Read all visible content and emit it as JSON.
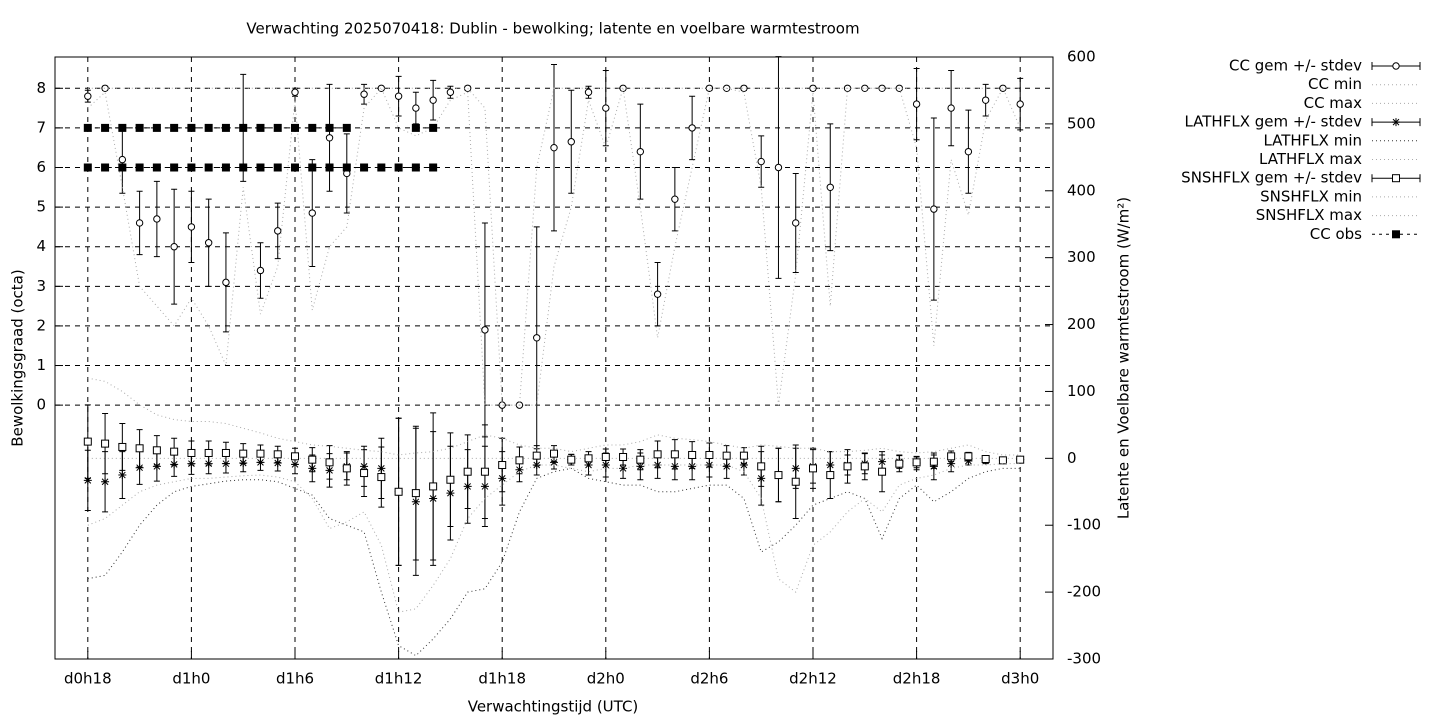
{
  "chart_data": {
    "type": "errorbar-line",
    "title": "Verwachting 2025070418: Dublin - bewolking; latente en voelbare warmtestroom",
    "xlabel": "Verwachtingstijd (UTC)",
    "ylabel": "Bewolkingsgraad (octa)",
    "y2label": "Latente en Voelbare warmtestroom (W/m²)",
    "x": [
      18,
      19,
      20,
      21,
      22,
      23,
      24,
      25,
      26,
      27,
      28,
      29,
      30,
      31,
      32,
      33,
      34,
      35,
      36,
      37,
      38,
      39,
      40,
      41,
      42,
      43,
      44,
      45,
      46,
      47,
      48,
      49,
      50,
      51,
      52,
      53,
      54,
      55,
      56,
      57,
      58,
      59,
      60,
      61,
      62,
      63,
      64,
      65,
      66,
      67,
      68,
      69,
      70,
      71,
      72
    ],
    "xlim": [
      16.1,
      73.9
    ],
    "xticks": [
      {
        "value": 18,
        "label": "d0h18"
      },
      {
        "value": 24,
        "label": "d1h0"
      },
      {
        "value": 30,
        "label": "d1h6"
      },
      {
        "value": 36,
        "label": "d1h12"
      },
      {
        "value": 42,
        "label": "d1h18"
      },
      {
        "value": 48,
        "label": "d2h0"
      },
      {
        "value": 54,
        "label": "d2h6"
      },
      {
        "value": 60,
        "label": "d2h12"
      },
      {
        "value": 66,
        "label": "d2h18"
      },
      {
        "value": 72,
        "label": "d3h0"
      }
    ],
    "ylim": [
      -6.41,
      8.79
    ],
    "yticks": [
      0,
      1,
      2,
      3,
      4,
      5,
      6,
      7,
      8
    ],
    "y2lim": [
      -300,
      600
    ],
    "y2ticks": [
      -300,
      -200,
      -100,
      0,
      100,
      200,
      300,
      400,
      500,
      600
    ],
    "grid": true,
    "legend": "right",
    "series": [
      {
        "name": "CC gem +/- stdev",
        "style": "errorbars",
        "marker": "circle",
        "color": "#000000",
        "values": [
          7.8,
          8.0,
          6.2,
          4.6,
          4.7,
          4.0,
          4.5,
          4.1,
          3.1,
          7.0,
          3.4,
          4.4,
          7.9,
          4.85,
          6.75,
          5.85,
          7.85,
          8.0,
          7.8,
          7.5,
          7.7,
          7.9,
          8.0,
          1.9,
          0,
          0,
          1.7,
          6.5,
          6.65,
          7.9,
          7.5,
          8.0,
          6.4,
          2.8,
          5.2,
          7.0,
          8.0,
          8.0,
          8.0,
          6.15,
          6.0,
          4.6,
          8.0,
          5.5,
          8.0,
          8.0,
          8.0,
          8.0,
          7.6,
          4.95,
          7.5,
          6.4,
          7.7,
          8.0,
          7.6
        ],
        "errors": [
          0.15,
          0.05,
          0.85,
          0.8,
          0.95,
          1.45,
          0.9,
          1.1,
          1.25,
          1.35,
          0.7,
          0.7,
          0.1,
          1.35,
          1.35,
          1.0,
          0.25,
          0,
          0.5,
          0.4,
          0.5,
          0.15,
          0.05,
          2.7,
          0,
          0,
          2.8,
          2.1,
          1.3,
          0.15,
          0.95,
          0,
          1.2,
          0.8,
          0.8,
          0.8,
          0.05,
          0,
          0.05,
          0.65,
          2.8,
          1.25,
          0.05,
          1.6,
          0,
          0,
          0,
          0,
          0.9,
          2.3,
          0.95,
          1.05,
          0.4,
          0,
          0.65
        ]
      },
      {
        "name": "CC min",
        "style": "dotted",
        "color": "#aaaaaa",
        "values": [
          7.5,
          7.9,
          5.5,
          3.0,
          2.5,
          2.0,
          2.7,
          2.0,
          1.0,
          5.5,
          2.3,
          3.5,
          7.7,
          2.4,
          4.0,
          4.5,
          7.5,
          8.0,
          7.0,
          6.8,
          7.0,
          7.7,
          7.9,
          0,
          0,
          0,
          0,
          3.5,
          5.0,
          7.7,
          6.5,
          8.0,
          5.0,
          1.7,
          4.0,
          6.0,
          8.0,
          8.0,
          7.9,
          5.5,
          0,
          3.3,
          7.9,
          2.5,
          8,
          8,
          8,
          8,
          6.5,
          1.5,
          6.2,
          4.8,
          7.2,
          8.0,
          7.0
        ]
      },
      {
        "name": "CC max",
        "style": "dotted",
        "color": "#aaaaaa",
        "values": [
          8,
          8,
          8,
          8,
          8,
          8,
          8,
          8,
          8,
          8,
          8,
          8,
          8,
          8,
          8,
          8,
          8,
          8,
          8,
          8,
          8,
          8,
          8,
          7.5,
          0,
          0,
          6,
          8,
          8,
          8,
          8,
          8,
          8,
          8,
          8,
          8,
          8,
          8,
          8,
          8,
          8,
          8,
          8,
          8,
          8,
          8,
          8,
          8,
          8,
          8,
          8,
          8,
          8,
          8,
          8
        ]
      },
      {
        "name": "LATHFLX gem +/- stdev",
        "style": "errorbars",
        "marker": "star",
        "color": "#000000",
        "axis": "y2",
        "values": [
          -33,
          -35,
          -25,
          -14,
          -12,
          -9,
          -8,
          -8,
          -8,
          -7,
          -6,
          -7,
          -9,
          -15,
          -18,
          -12,
          -12,
          -15,
          -50,
          -65,
          -60,
          -52,
          -42,
          -42,
          -30,
          -17,
          -10,
          -6,
          -2,
          -10,
          -10,
          -15,
          -12,
          -10,
          -12,
          -12,
          -10,
          -12,
          -10,
          -30,
          -25,
          -15,
          -12,
          -10,
          -10,
          -8,
          -5,
          -5,
          -7,
          -12,
          -8,
          -4,
          -3,
          -3,
          -2
        ],
        "errors": [
          45,
          45,
          35,
          25,
          22,
          18,
          16,
          15,
          14,
          13,
          12,
          12,
          14,
          20,
          25,
          20,
          30,
          45,
          110,
          110,
          100,
          70,
          55,
          60,
          40,
          18,
          15,
          10,
          8,
          15,
          18,
          15,
          20,
          20,
          20,
          20,
          18,
          18,
          15,
          40,
          40,
          30,
          25,
          20,
          15,
          15,
          10,
          10,
          10,
          20,
          12,
          6,
          5,
          4,
          4
        ]
      },
      {
        "name": "LATHFLX min",
        "style": "dotted",
        "color": "#333333",
        "axis": "y2",
        "values": [
          -180,
          -175,
          -140,
          -100,
          -70,
          -50,
          -42,
          -38,
          -34,
          -32,
          -32,
          -35,
          -45,
          -55,
          -90,
          -100,
          -110,
          -200,
          -280,
          -295,
          -270,
          -240,
          -200,
          -195,
          -155,
          -80,
          -30,
          -20,
          -15,
          -30,
          -35,
          -40,
          -40,
          -50,
          -50,
          -45,
          -40,
          -40,
          -60,
          -140,
          -125,
          -100,
          -70,
          -60,
          -50,
          -60,
          -120,
          -60,
          -40,
          -65,
          -50,
          -30,
          -20,
          -15,
          -15
        ]
      },
      {
        "name": "LATHFLX max",
        "style": "dotted",
        "color": "#aaaaaa",
        "axis": "y2",
        "values": [
          0,
          0,
          0,
          0,
          0,
          0,
          0,
          0,
          0,
          0,
          0,
          0,
          0,
          0,
          0,
          0,
          0,
          0,
          0,
          0,
          0,
          0,
          0,
          0,
          0,
          0,
          0,
          0,
          0,
          0,
          0,
          0,
          0,
          0,
          0,
          0,
          0,
          0,
          0,
          0,
          0,
          0,
          0,
          0,
          0,
          0,
          0,
          0,
          0,
          0,
          0,
          0,
          0,
          0,
          0
        ]
      },
      {
        "name": "SNSHFLX gem +/- stdev",
        "style": "errorbars",
        "marker": "square",
        "color": "#000000",
        "axis": "y2",
        "values": [
          25,
          22,
          17,
          15,
          12,
          10,
          8,
          8,
          8,
          7,
          7,
          6,
          3,
          -2,
          -6,
          -15,
          -22,
          -28,
          -50,
          -52,
          -42,
          -32,
          -20,
          -20,
          -10,
          -3,
          4,
          7,
          -2,
          0,
          2,
          2,
          -2,
          6,
          6,
          5,
          5,
          4,
          4,
          -12,
          -25,
          -35,
          -15,
          -25,
          -12,
          -12,
          -20,
          -8,
          -6,
          -5,
          3,
          3,
          -1,
          -3,
          -2
        ],
        "errors": [
          55,
          45,
          35,
          28,
          22,
          20,
          18,
          18,
          16,
          15,
          13,
          12,
          12,
          18,
          25,
          25,
          35,
          45,
          110,
          100,
          110,
          70,
          55,
          70,
          40,
          20,
          15,
          12,
          8,
          10,
          12,
          12,
          15,
          20,
          22,
          20,
          18,
          15,
          12,
          30,
          40,
          55,
          30,
          35,
          25,
          20,
          30,
          12,
          8,
          10,
          8,
          6,
          4,
          4,
          4
        ]
      },
      {
        "name": "SNSHFLX min",
        "style": "dotted",
        "color": "#aaaaaa",
        "axis": "y2",
        "values": [
          -100,
          -90,
          -70,
          -50,
          -40,
          -35,
          -30,
          -30,
          -28,
          -26,
          -25,
          -28,
          -35,
          -60,
          -105,
          -95,
          -80,
          -130,
          -230,
          -225,
          -190,
          -150,
          -90,
          -60,
          -40,
          -20,
          -10,
          -10,
          -15,
          -20,
          -15,
          -15,
          -10,
          -10,
          -10,
          -10,
          -10,
          -10,
          -20,
          -60,
          -180,
          -200,
          -130,
          -110,
          -80,
          -60,
          -80,
          -40,
          -30,
          -25,
          -15,
          -10,
          -10,
          -8,
          -8
        ]
      },
      {
        "name": "SNSHFLX max",
        "style": "dotted",
        "color": "#aaaaaa",
        "axis": "y2",
        "values": [
          120,
          115,
          100,
          80,
          65,
          58,
          55,
          55,
          52,
          45,
          38,
          30,
          25,
          20,
          18,
          15,
          12,
          10,
          5,
          8,
          10,
          15,
          25,
          35,
          30,
          20,
          15,
          15,
          10,
          15,
          20,
          20,
          25,
          35,
          30,
          28,
          25,
          20,
          15,
          20,
          18,
          15,
          15,
          10,
          10,
          12,
          15,
          10,
          8,
          10,
          15,
          20,
          10,
          5,
          5
        ]
      },
      {
        "name": "CC obs",
        "style": "linespoints",
        "marker": "filled-square",
        "color": "#000000",
        "x": [
          18,
          19,
          20,
          21,
          22,
          23,
          24,
          25,
          26,
          27,
          28,
          29,
          30,
          31,
          32,
          33,
          null,
          18,
          19,
          20,
          21,
          22,
          23,
          24,
          25,
          26,
          27,
          28,
          29,
          30,
          31,
          32,
          33,
          34,
          35,
          36,
          37,
          38,
          null,
          37,
          38
        ],
        "values": [
          7,
          7,
          7,
          7,
          7,
          7,
          7,
          7,
          7,
          7,
          7,
          7,
          7,
          7,
          7,
          7,
          null,
          6,
          6,
          6,
          6,
          6,
          6,
          6,
          6,
          6,
          6,
          6,
          6,
          6,
          6,
          6,
          6,
          6,
          6,
          6,
          6,
          6,
          null,
          7,
          7
        ]
      }
    ]
  }
}
